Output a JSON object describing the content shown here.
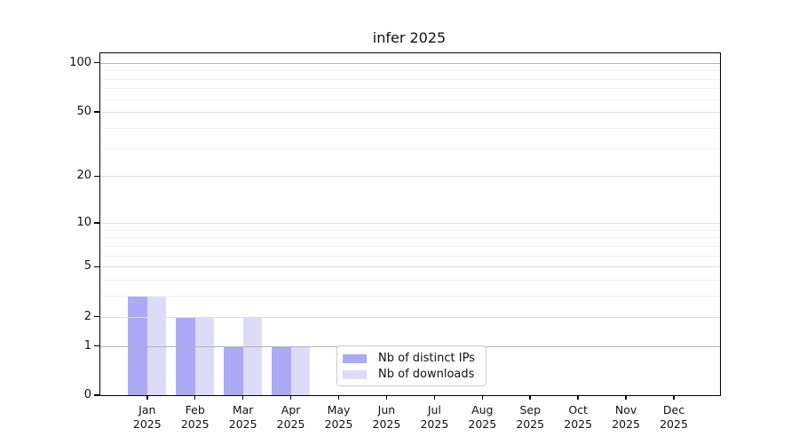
{
  "title": "infer 2025",
  "chart_data": {
    "type": "bar",
    "title": "infer 2025",
    "categories": [
      "Jan 2025",
      "Feb 2025",
      "Mar 2025",
      "Apr 2025",
      "May 2025",
      "Jun 2025",
      "Jul 2025",
      "Aug 2025",
      "Sep 2025",
      "Oct 2025",
      "Nov 2025",
      "Dec 2025"
    ],
    "x_tick_lines": [
      {
        "month": "Jan",
        "year": "2025"
      },
      {
        "month": "Feb",
        "year": "2025"
      },
      {
        "month": "Mar",
        "year": "2025"
      },
      {
        "month": "Apr",
        "year": "2025"
      },
      {
        "month": "May",
        "year": "2025"
      },
      {
        "month": "Jun",
        "year": "2025"
      },
      {
        "month": "Jul",
        "year": "2025"
      },
      {
        "month": "Aug",
        "year": "2025"
      },
      {
        "month": "Sep",
        "year": "2025"
      },
      {
        "month": "Oct",
        "year": "2025"
      },
      {
        "month": "Nov",
        "year": "2025"
      },
      {
        "month": "Dec",
        "year": "2025"
      }
    ],
    "series": [
      {
        "name": "Nb of distinct IPs",
        "color": "#aaaaf5",
        "values": [
          3,
          2,
          1,
          1,
          0,
          0,
          0,
          0,
          0,
          0,
          0,
          0
        ]
      },
      {
        "name": "Nb of downloads",
        "color": "#dcdcfa",
        "values": [
          3,
          2,
          2,
          1,
          0,
          0,
          0,
          0,
          0,
          0,
          0,
          0
        ]
      }
    ],
    "yscale": "log(1+y)",
    "ylim": [
      0,
      115
    ],
    "y_ticks": [
      100,
      50,
      20,
      10,
      5,
      2,
      1,
      0
    ],
    "grid": {
      "strong_lines": [
        100,
        1
      ],
      "major_lines": [
        50,
        20,
        10,
        5,
        2
      ],
      "minor_lines": [
        90,
        80,
        70,
        60,
        40,
        30,
        9,
        8,
        7,
        6,
        4,
        3
      ],
      "strong_color": "#b3b3b3",
      "major_color": "#dedede",
      "minor_color": "#f2f2f2"
    },
    "legend_position": "inside-bottom-center"
  },
  "legend": {
    "items": [
      {
        "label": "Nb of distinct IPs",
        "color": "#aaaaf5"
      },
      {
        "label": "Nb of downloads",
        "color": "#dcdcfa"
      }
    ]
  }
}
